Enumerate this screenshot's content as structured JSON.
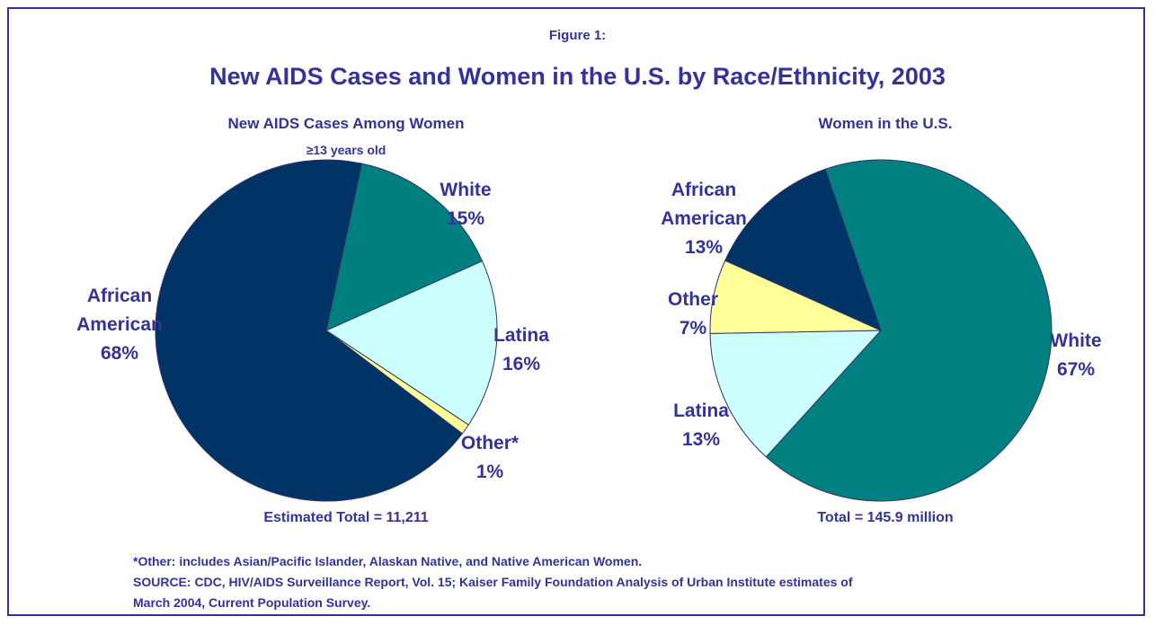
{
  "figure_label": "Figure 1:",
  "title": "New AIDS Cases and Women in the U.S. by Race/Ethnicity, 2003",
  "chart_data": [
    {
      "type": "pie",
      "title": "New AIDS Cases Among Women",
      "subtitle": "≥13 years old",
      "categories": [
        "White",
        "Latina",
        "Other*",
        "African American"
      ],
      "values": [
        15,
        16,
        1,
        68
      ],
      "value_labels": [
        "15%",
        "16%",
        "1%",
        "68%"
      ],
      "colors": [
        "#007f7f",
        "#ccffff",
        "#ffff99",
        "#003366"
      ],
      "note": "Estimated Total = 11,211"
    },
    {
      "type": "pie",
      "title": "Women in the U.S.",
      "categories": [
        "White",
        "Latina",
        "Other",
        "African American"
      ],
      "values": [
        67,
        13,
        7,
        13
      ],
      "value_labels": [
        "67%",
        "13%",
        "7%",
        "13%"
      ],
      "colors": [
        "#008080",
        "#ccffff",
        "#ffff99",
        "#003366"
      ],
      "note": "Total = 145.9 million"
    }
  ],
  "footnote": "*Other: includes Asian/Pacific Islander, Alaskan Native, and Native American Women.",
  "source": "SOURCE: CDC, HIV/AIDS Surveillance Report, Vol. 15;  Kaiser Family Foundation Analysis of Urban Institute estimates of March 2004, Current Population Survey."
}
